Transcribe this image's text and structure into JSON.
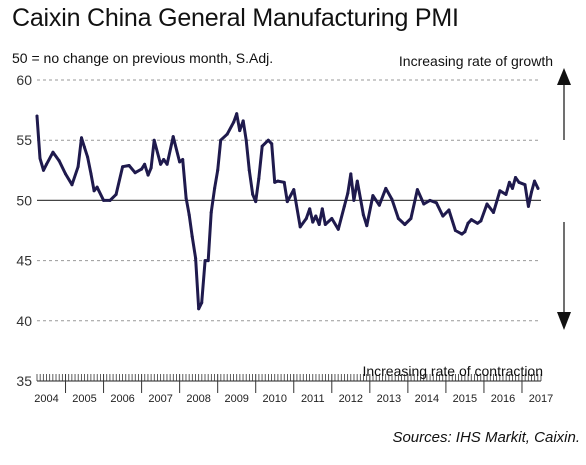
{
  "chart_data": {
    "type": "line",
    "title": "Caixin China General Manufacturing PMI",
    "subtitle": "50 = no change on previous month, S.Adj.",
    "annotations": {
      "top": "Increasing rate of growth",
      "bottom": "Increasing rate of contraction"
    },
    "source": "Sources: IHS Markit, Caixin.",
    "ylim": [
      35,
      60
    ],
    "yticks": [
      35,
      40,
      45,
      50,
      55,
      60
    ],
    "reference_line": 50,
    "grid": "dashed horizontal",
    "x_start": 2004.25,
    "x_end": 2017.5,
    "xticks": [
      "2004",
      "2005",
      "2006",
      "2007",
      "2008",
      "2009",
      "2010",
      "2011",
      "2012",
      "2013",
      "2014",
      "2015",
      "2016",
      "2017"
    ],
    "series": [
      {
        "name": "",
        "color": "#1f1a4d",
        "x": [
          2004.25,
          2004.33,
          2004.42,
          2004.5,
          2004.67,
          2004.83,
          2005.0,
          2005.17,
          2005.33,
          2005.42,
          2005.5,
          2005.58,
          2005.67,
          2005.75,
          2005.83,
          2006.0,
          2006.17,
          2006.33,
          2006.5,
          2006.67,
          2006.83,
          2007.0,
          2007.08,
          2007.17,
          2007.25,
          2007.33,
          2007.5,
          2007.58,
          2007.67,
          2007.83,
          2008.0,
          2008.08,
          2008.17,
          2008.25,
          2008.33,
          2008.42,
          2008.5,
          2008.58,
          2008.67,
          2008.75,
          2008.83,
          2008.92,
          2009.0,
          2009.08,
          2009.25,
          2009.42,
          2009.5,
          2009.58,
          2009.67,
          2009.75,
          2009.83,
          2009.92,
          2010.0,
          2010.08,
          2010.17,
          2010.33,
          2010.42,
          2010.5,
          2010.58,
          2010.75,
          2010.83,
          2011.0,
          2011.17,
          2011.33,
          2011.42,
          2011.5,
          2011.58,
          2011.67,
          2011.75,
          2011.83,
          2012.0,
          2012.17,
          2012.33,
          2012.42,
          2012.5,
          2012.58,
          2012.67,
          2012.83,
          2012.92,
          2013.08,
          2013.25,
          2013.42,
          2013.58,
          2013.75,
          2013.92,
          2014.08,
          2014.25,
          2014.42,
          2014.58,
          2014.75,
          2014.92,
          2015.08,
          2015.25,
          2015.42,
          2015.5,
          2015.58,
          2015.67,
          2015.83,
          2015.92,
          2016.08,
          2016.25,
          2016.42,
          2016.58,
          2016.67,
          2016.75,
          2016.83,
          2016.92,
          2017.08,
          2017.17,
          2017.25,
          2017.33,
          2017.42
        ],
        "values": [
          57.0,
          53.5,
          52.5,
          53.0,
          54.0,
          53.3,
          52.2,
          51.3,
          52.8,
          55.2,
          54.4,
          53.6,
          52.2,
          50.8,
          51.1,
          50.0,
          50.0,
          50.5,
          52.8,
          52.9,
          52.3,
          52.6,
          53.0,
          52.1,
          52.7,
          55.0,
          53.0,
          53.4,
          53.0,
          55.3,
          53.2,
          53.4,
          50.2,
          48.8,
          47.0,
          45.2,
          41.0,
          41.5,
          45.0,
          45.0,
          49.0,
          51.0,
          52.5,
          55.0,
          55.5,
          56.5,
          57.2,
          55.8,
          56.6,
          55.0,
          52.5,
          50.5,
          49.9,
          51.8,
          54.5,
          55.0,
          54.7,
          51.5,
          51.6,
          51.5,
          49.9,
          50.9,
          47.8,
          48.5,
          49.3,
          48.2,
          48.7,
          48.0,
          49.3,
          48.0,
          48.5,
          47.6,
          49.5,
          50.6,
          52.2,
          50.0,
          51.6,
          48.8,
          47.9,
          50.4,
          49.6,
          51.0,
          50.1,
          48.5,
          48.0,
          48.5,
          50.9,
          49.7,
          50.0,
          49.8,
          48.7,
          49.2,
          47.5,
          47.2,
          47.4,
          48.1,
          48.4,
          48.1,
          48.3,
          49.7,
          49.0,
          50.8,
          50.5,
          51.5,
          51.0,
          51.9,
          51.5,
          51.3,
          49.5,
          50.7,
          51.6,
          51.0
        ]
      }
    ]
  }
}
